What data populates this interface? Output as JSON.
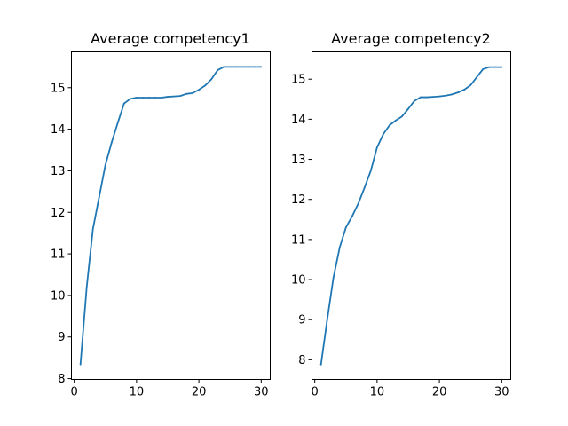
{
  "chart_data": [
    {
      "type": "line",
      "title": "Average competency1",
      "xlabel": "",
      "ylabel": "",
      "xlim": [
        -0.45,
        31.45
      ],
      "ylim": [
        7.98,
        15.86
      ],
      "xticks": [
        0,
        10,
        20,
        30
      ],
      "yticks": [
        8,
        9,
        10,
        11,
        12,
        13,
        14,
        15
      ],
      "grid": false,
      "color": "#1f77b4",
      "series": [
        {
          "x": [
            1,
            2,
            3,
            4,
            5,
            6,
            7,
            8,
            9,
            10,
            11,
            12,
            13,
            14,
            15,
            16,
            17,
            18,
            19,
            20,
            21,
            22,
            23,
            24,
            25,
            26,
            27,
            28,
            29,
            30
          ],
          "values": [
            8.34,
            10.2,
            11.6,
            12.37,
            13.14,
            13.68,
            14.16,
            14.62,
            14.73,
            14.76,
            14.76,
            14.76,
            14.76,
            14.76,
            14.78,
            14.79,
            14.8,
            14.85,
            14.87,
            14.95,
            15.05,
            15.2,
            15.42,
            15.5,
            15.5,
            15.5,
            15.5,
            15.5,
            15.5,
            15.5
          ]
        }
      ]
    },
    {
      "type": "line",
      "title": "Average competency2",
      "xlabel": "",
      "ylabel": "",
      "xlim": [
        -0.45,
        31.45
      ],
      "ylim": [
        7.51,
        15.68
      ],
      "xticks": [
        0,
        10,
        20,
        30
      ],
      "yticks": [
        8,
        9,
        10,
        11,
        12,
        13,
        14,
        15
      ],
      "grid": false,
      "color": "#1f77b4",
      "series": [
        {
          "x": [
            1,
            2,
            3,
            4,
            5,
            6,
            7,
            8,
            9,
            10,
            11,
            12,
            13,
            14,
            15,
            16,
            17,
            18,
            19,
            20,
            21,
            22,
            23,
            24,
            25,
            26,
            27,
            28,
            29,
            30
          ],
          "values": [
            7.88,
            9.0,
            10.05,
            10.8,
            11.3,
            11.58,
            11.9,
            12.3,
            12.72,
            13.3,
            13.63,
            13.85,
            13.97,
            14.07,
            14.26,
            14.46,
            14.55,
            14.55,
            14.56,
            14.57,
            14.59,
            14.62,
            14.67,
            14.74,
            14.85,
            15.05,
            15.25,
            15.3,
            15.3,
            15.3
          ]
        }
      ]
    }
  ]
}
